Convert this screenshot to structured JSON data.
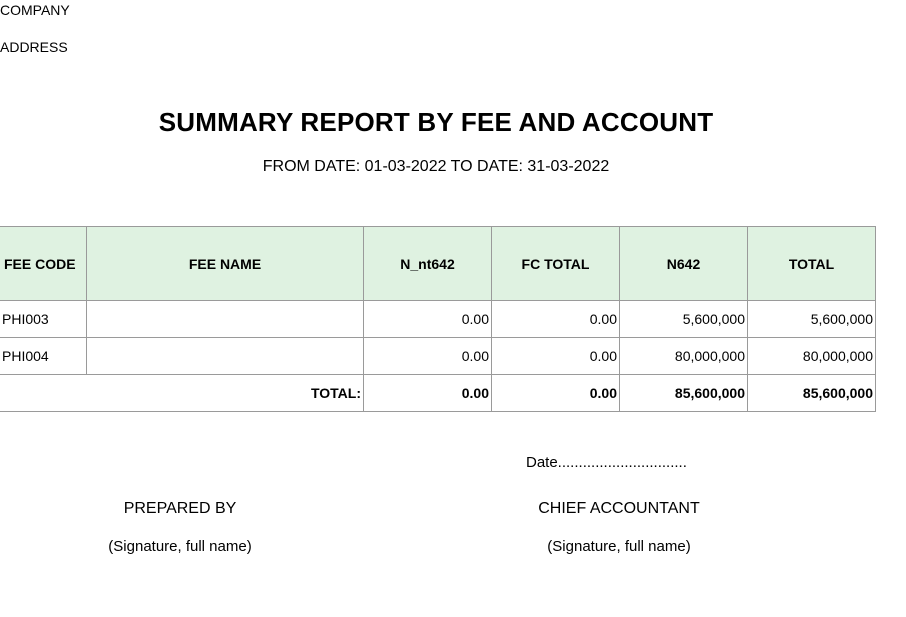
{
  "header": {
    "company": "COMPANY",
    "address": "ADDRESS"
  },
  "report": {
    "title": "SUMMARY REPORT BY FEE AND ACCOUNT",
    "date_range": "FROM DATE: 01-03-2022 TO DATE: 31-03-2022"
  },
  "table": {
    "columns": [
      "FEE CODE",
      "FEE NAME",
      "N_nt642",
      "FC TOTAL",
      "N642",
      "TOTAL"
    ],
    "rows": [
      {
        "fee_code": "PHI003",
        "fee_name": "",
        "n_nt642": "0.00",
        "fc_total": "0.00",
        "n642": "5,600,000",
        "total": "5,600,000"
      },
      {
        "fee_code": "PHI004",
        "fee_name": "",
        "n_nt642": "0.00",
        "fc_total": "0.00",
        "n642": "80,000,000",
        "total": "80,000,000"
      }
    ],
    "totals": {
      "label": "TOTAL:",
      "n_nt642": "0.00",
      "fc_total": "0.00",
      "n642": "85,600,000",
      "total": "85,600,000"
    },
    "colors": {
      "header_bg": "#dff2e1",
      "border": "#9a9a9a"
    }
  },
  "signatures": {
    "date_line": "Date...............................",
    "prepared_by": "PREPARED BY",
    "prepared_by_note": "(Signature, full name)",
    "chief_accountant": "CHIEF ACCOUNTANT",
    "chief_accountant_note": "(Signature, full name)"
  }
}
